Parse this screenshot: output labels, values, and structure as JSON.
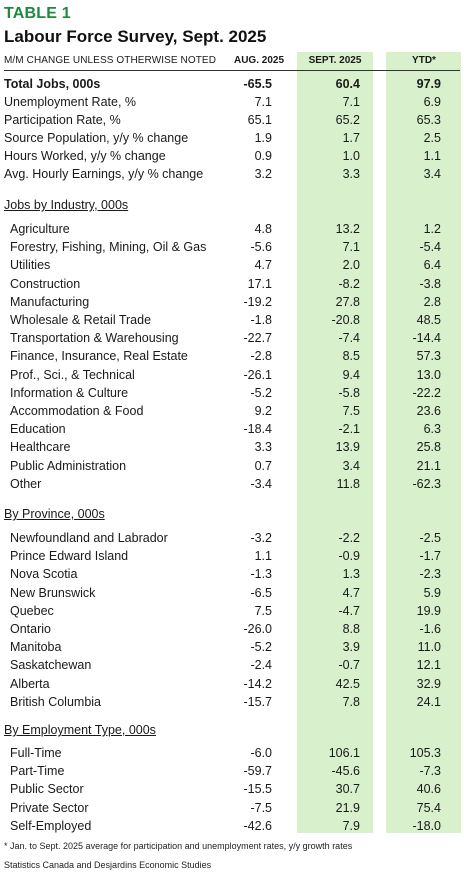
{
  "title_line1": "TABLE 1",
  "title_line2": "Labour Force Survey, Sept. 2025",
  "header": {
    "label": "M/M CHANGE UNLESS OTHERWISE NOTED",
    "col1": "AUG. 2025",
    "col2": "SEPT. 2025",
    "col3": "YTD*"
  },
  "summary": [
    {
      "label": "Total Jobs, 000s",
      "aug": "-65.5",
      "sept": "60.4",
      "ytd": "97.9",
      "bold": true
    },
    {
      "label": "Unemployment Rate, %",
      "aug": "7.1",
      "sept": "7.1",
      "ytd": "6.9"
    },
    {
      "label": "Participation Rate, %",
      "aug": "65.1",
      "sept": "65.2",
      "ytd": "65.3"
    },
    {
      "label": "Source Population, y/y % change",
      "aug": "1.9",
      "sept": "1.7",
      "ytd": "2.5"
    },
    {
      "label": "Hours Worked, y/y % change",
      "aug": "0.9",
      "sept": "1.0",
      "ytd": "1.1"
    },
    {
      "label": "Avg. Hourly Earnings, y/y % change",
      "aug": "3.2",
      "sept": "3.3",
      "ytd": "3.4"
    }
  ],
  "sections": [
    {
      "title": "Jobs by Industry, 000s",
      "rows": [
        {
          "label": "Agriculture",
          "aug": "4.8",
          "sept": "13.2",
          "ytd": "1.2"
        },
        {
          "label": "Forestry, Fishing, Mining, Oil & Gas",
          "aug": "-5.6",
          "sept": "7.1",
          "ytd": "-5.4"
        },
        {
          "label": "Utilities",
          "aug": "4.7",
          "sept": "2.0",
          "ytd": "6.4"
        },
        {
          "label": "Construction",
          "aug": "17.1",
          "sept": "-8.2",
          "ytd": "-3.8"
        },
        {
          "label": "Manufacturing",
          "aug": "-19.2",
          "sept": "27.8",
          "ytd": "2.8"
        },
        {
          "label": "Wholesale & Retail Trade",
          "aug": "-1.8",
          "sept": "-20.8",
          "ytd": "48.5"
        },
        {
          "label": "Transportation & Warehousing",
          "aug": "-22.7",
          "sept": "-7.4",
          "ytd": "-14.4"
        },
        {
          "label": "Finance, Insurance, Real Estate",
          "aug": "-2.8",
          "sept": "8.5",
          "ytd": "57.3"
        },
        {
          "label": "Prof., Sci., & Technical",
          "aug": "-26.1",
          "sept": "9.4",
          "ytd": "13.0"
        },
        {
          "label": "Information & Culture",
          "aug": "-5.2",
          "sept": "-5.8",
          "ytd": "-22.2"
        },
        {
          "label": "Accommodation & Food",
          "aug": "9.2",
          "sept": "7.5",
          "ytd": "23.6"
        },
        {
          "label": "Education",
          "aug": "-18.4",
          "sept": "-2.1",
          "ytd": "6.3"
        },
        {
          "label": "Healthcare",
          "aug": "3.3",
          "sept": "13.9",
          "ytd": "25.8"
        },
        {
          "label": "Public Administration",
          "aug": "0.7",
          "sept": "3.4",
          "ytd": "21.1"
        },
        {
          "label": "Other",
          "aug": "-3.4",
          "sept": "11.8",
          "ytd": "-62.3"
        }
      ]
    },
    {
      "title": "By Province, 000s",
      "rows": [
        {
          "label": "Newfoundland and Labrador",
          "aug": "-3.2",
          "sept": "-2.2",
          "ytd": "-2.5"
        },
        {
          "label": "Prince Edward Island",
          "aug": "1.1",
          "sept": "-0.9",
          "ytd": "-1.7"
        },
        {
          "label": "Nova Scotia",
          "aug": "-1.3",
          "sept": "1.3",
          "ytd": "-2.3"
        },
        {
          "label": "New Brunswick",
          "aug": "-6.5",
          "sept": "4.7",
          "ytd": "5.9"
        },
        {
          "label": "Quebec",
          "aug": "7.5",
          "sept": "-4.7",
          "ytd": "19.9"
        },
        {
          "label": "Ontario",
          "aug": "-26.0",
          "sept": "8.8",
          "ytd": "-1.6"
        },
        {
          "label": "Manitoba",
          "aug": "-5.2",
          "sept": "3.9",
          "ytd": "11.0"
        },
        {
          "label": "Saskatchewan",
          "aug": "-2.4",
          "sept": "-0.7",
          "ytd": "12.1"
        },
        {
          "label": "Alberta",
          "aug": "-14.2",
          "sept": "42.5",
          "ytd": "32.9"
        },
        {
          "label": "British Columbia",
          "aug": "-15.7",
          "sept": "7.8",
          "ytd": "24.1"
        }
      ]
    },
    {
      "title": "By Employment Type, 000s",
      "rows": [
        {
          "label": "Full-Time",
          "aug": "-6.0",
          "sept": "106.1",
          "ytd": "105.3"
        },
        {
          "label": "Part-Time",
          "aug": "-59.7",
          "sept": "-45.6",
          "ytd": "-7.3"
        },
        {
          "label": "Public Sector",
          "aug": "-15.5",
          "sept": "30.7",
          "ytd": "40.6"
        },
        {
          "label": "Private Sector",
          "aug": "-7.5",
          "sept": "21.9",
          "ytd": "75.4"
        },
        {
          "label": "Self-Employed",
          "aug": "-42.6",
          "sept": "7.9",
          "ytd": "-18.0"
        }
      ]
    }
  ],
  "footnote": "* Jan. to Sept. 2025 average for participation and unemployment rates, y/y growth rates",
  "source": "Statistics Canada and Desjardins Economic Studies",
  "colors": {
    "title_green": "#1e8a3e",
    "column_shade": "#d8f0cc"
  }
}
